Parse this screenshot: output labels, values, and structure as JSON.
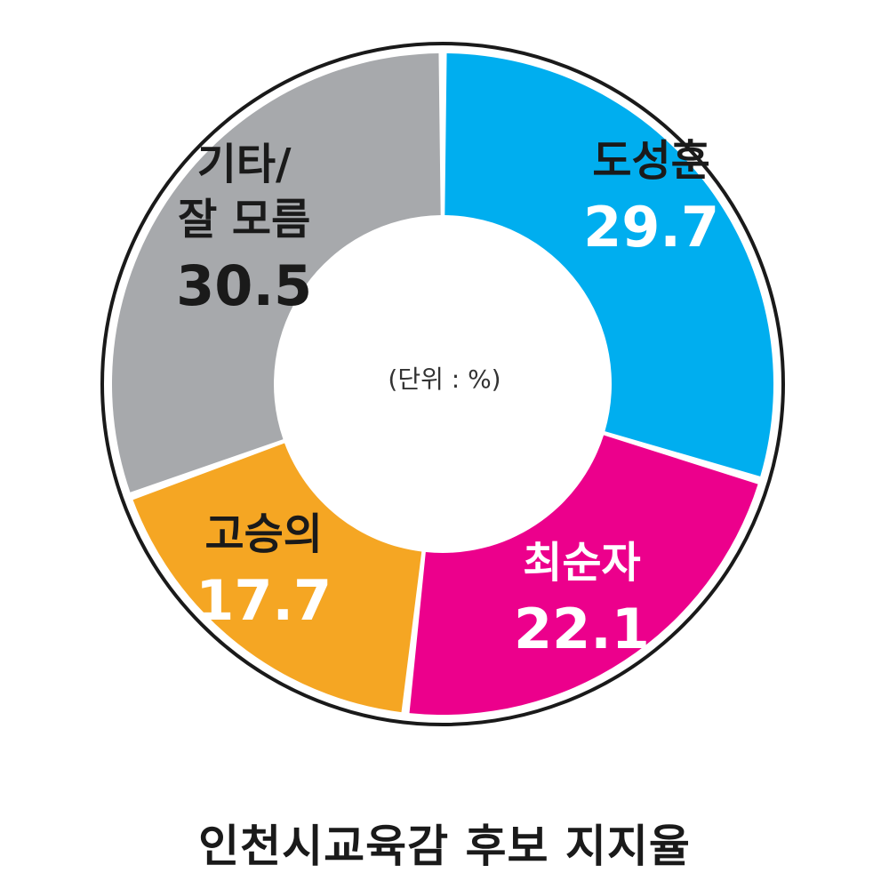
{
  "chart_data": {
    "type": "pie",
    "donut": true,
    "title": "인천시교육감 후보 지지율",
    "center_note": "(단위 : %)",
    "slices": [
      {
        "label": "도성훈",
        "value": 29.7,
        "value_text": "29.7",
        "color": "#00aeef",
        "label_color": "#1a1a1a",
        "value_color": "#ffffff"
      },
      {
        "label": "최순자",
        "value": 22.1,
        "value_text": "22.1",
        "color": "#ec008c",
        "label_color": "#ffffff",
        "value_color": "#ffffff"
      },
      {
        "label": "고승의",
        "value": 17.7,
        "value_text": "17.7",
        "color": "#f5a623",
        "label_color": "#1a1a1a",
        "value_color": "#ffffff"
      },
      {
        "label": "기타/\n잘 모름",
        "value": 30.5,
        "value_text": "30.5",
        "color": "#a7a9ac",
        "label_color": "#1a1a1a",
        "value_color": "#1a1a1a"
      }
    ]
  }
}
